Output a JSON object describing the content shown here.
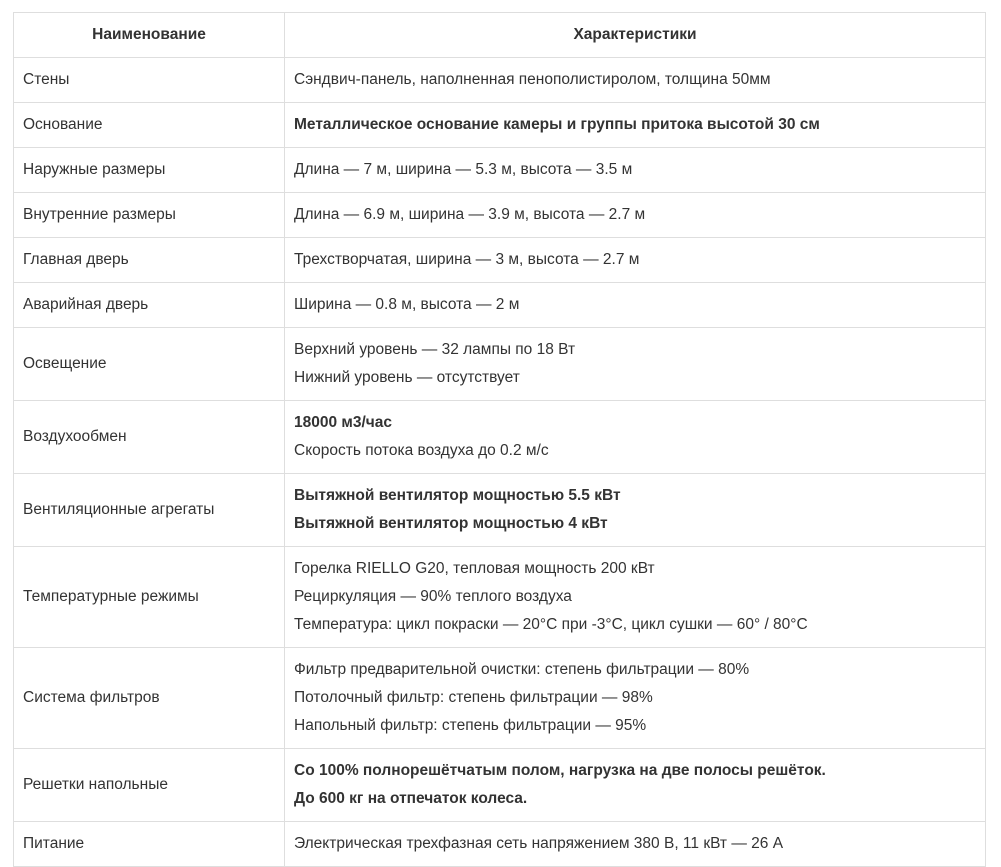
{
  "table": {
    "headers": [
      "Наименование",
      "Характеристики"
    ],
    "rows": [
      {
        "name": "Стены",
        "lines": [
          {
            "text": "Сэндвич-панель, наполненная пенополистиролом, толщина 50мм",
            "bold": false
          }
        ]
      },
      {
        "name": "Основание",
        "lines": [
          {
            "text": "Металлическое основание камеры и группы притока высотой 30 см",
            "bold": true
          }
        ]
      },
      {
        "name": "Наружные размеры",
        "lines": [
          {
            "text": "Длина — 7 м, ширина — 5.3 м, высота — 3.5 м",
            "bold": false
          }
        ]
      },
      {
        "name": "Внутренние размеры",
        "lines": [
          {
            "text": "Длина — 6.9 м, ширина — 3.9 м, высота — 2.7 м",
            "bold": false
          }
        ]
      },
      {
        "name": "Главная дверь",
        "lines": [
          {
            "text": "Трехстворчатая, ширина — 3 м, высота — 2.7 м",
            "bold": false
          }
        ]
      },
      {
        "name": "Аварийная дверь",
        "lines": [
          {
            "text": "Ширина — 0.8 м, высота — 2 м",
            "bold": false
          }
        ]
      },
      {
        "name": "Освещение",
        "lines": [
          {
            "text": "Верхний уровень — 32 лампы по 18 Вт",
            "bold": false
          },
          {
            "text": "Нижний уровень — отсутствует",
            "bold": false
          }
        ]
      },
      {
        "name": "Воздухообмен",
        "lines": [
          {
            "text": "18000 м3/час",
            "bold": true
          },
          {
            "text": "Скорость потока воздуха до 0.2 м/с",
            "bold": false
          }
        ]
      },
      {
        "name": "Вентиляционные агрегаты",
        "lines": [
          {
            "text": "Вытяжной вентилятор мощностью 5.5 кВт",
            "bold": true
          },
          {
            "text": "Вытяжной вентилятор мощностью 4 кВт",
            "bold": true
          }
        ]
      },
      {
        "name": "Температурные режимы",
        "lines": [
          {
            "text": "Горелка RIELLO G20, тепловая мощность 200 кВт",
            "bold": false
          },
          {
            "text": "Рециркуляция — 90% теплого воздуха",
            "bold": false
          },
          {
            "text": "Температура: цикл покраски — 20°C при -3°C, цикл сушки — 60° / 80°C",
            "bold": false
          }
        ]
      },
      {
        "name": "Система фильтров",
        "lines": [
          {
            "text": "Фильтр предварительной очистки: степень фильтрации — 80%",
            "bold": false
          },
          {
            "text": "Потолочный фильтр: степень фильтрации — 98%",
            "bold": false
          },
          {
            "text": "Напольный фильтр: степень фильтрации — 95%",
            "bold": false
          }
        ]
      },
      {
        "name": "Решетки напольные",
        "lines": [
          {
            "text": "Со 100% полнорешётчатым полом, нагрузка на две полосы решёток.",
            "bold": true
          },
          {
            "text": "До 600 кг на отпечаток колеса.",
            "bold": true
          }
        ]
      },
      {
        "name": "Питание",
        "lines": [
          {
            "text": "Электрическая трехфазная сеть напряжением 380 В, 11 кВт — 26 А",
            "bold": false
          }
        ]
      }
    ]
  }
}
